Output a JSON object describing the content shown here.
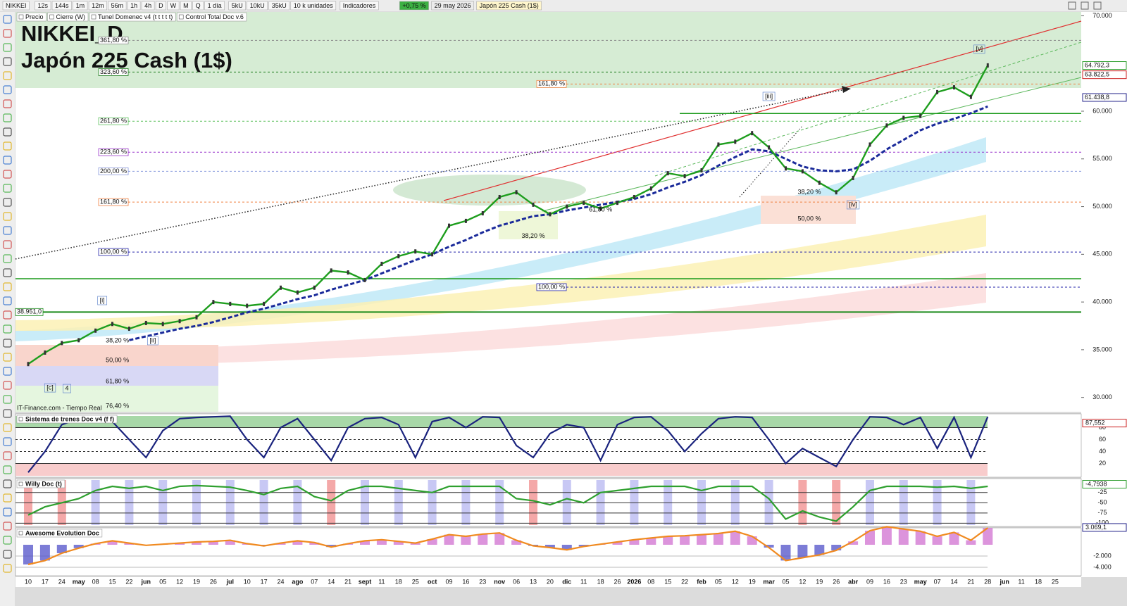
{
  "toolbar": {
    "symbol": "NIKKEI",
    "timeframes": [
      "12s",
      "144s",
      "1m",
      "12m",
      "56m",
      "1h",
      "4h",
      "D",
      "W",
      "M",
      "Q"
    ],
    "period": "1 día",
    "units": [
      "5kU",
      "10kU",
      "35kU"
    ],
    "units_select": "10 k unidades",
    "indicators": "Indicadores",
    "change": "+0,75 %",
    "date": "29 may 2026",
    "instrument": "Japón 225 Cash (1$)"
  },
  "legend": [
    "Precio",
    "Cierre (W)",
    "Tunel Domenec v4 (t t t t t)",
    "Control Total Doc v.6"
  ],
  "main": {
    "title": "NIKKEI_D",
    "subtitle": "Japón 225 Cash (1$)",
    "source": "IT-Finance.com - Tiempo Real",
    "ylim": [
      28500,
      70400
    ],
    "yticks": [
      {
        "value": 30000,
        "label": "30.000"
      },
      {
        "value": 35000,
        "label": "35.000"
      },
      {
        "value": 40000,
        "label": "40.000"
      },
      {
        "value": 45000,
        "label": "45.000"
      },
      {
        "value": 50000,
        "label": "50.000"
      },
      {
        "value": 55000,
        "label": "55.000"
      },
      {
        "value": 60000,
        "label": "60.000"
      },
      {
        "value": 70000,
        "label": "70.000"
      }
    ],
    "price": [
      33500,
      34700,
      35700,
      36000,
      37000,
      37700,
      37200,
      37800,
      37700,
      38000,
      38400,
      40000,
      39800,
      39600,
      39800,
      41500,
      41000,
      41500,
      43300,
      43100,
      42300,
      44000,
      44800,
      45300,
      45000,
      48000,
      48500,
      49300,
      51000,
      51500,
      50200,
      49200,
      50000,
      50400,
      49800,
      50400,
      51000,
      51900,
      53500,
      53200,
      53800,
      56500,
      56800,
      57700,
      56200,
      54000,
      53700,
      52500,
      51500,
      53000,
      56500,
      58500,
      59300,
      59500,
      62000,
      62500,
      61500,
      64800
    ],
    "trend": [
      null,
      null,
      null,
      null,
      null,
      null,
      36000,
      36400,
      36800,
      37200,
      37500,
      37900,
      38400,
      38900,
      39300,
      39800,
      40300,
      40700,
      41300,
      41800,
      42300,
      43000,
      43700,
      44400,
      45000,
      45800,
      46500,
      47300,
      48000,
      48500,
      49000,
      49200,
      49600,
      49900,
      50200,
      50500,
      50800,
      51300,
      52000,
      52600,
      53300,
      54300,
      55200,
      56000,
      55800,
      55000,
      54200,
      53800,
      53700,
      53900,
      54800,
      56000,
      57000,
      58000,
      58700,
      59200,
      59800,
      60500
    ],
    "levels": [
      {
        "label": "361,80 %",
        "value": 67420,
        "color": "#888888"
      },
      {
        "label": "323,60 %",
        "value": 64100,
        "color": "#1a7a1a"
      },
      {
        "label": "161,80 %",
        "value": 62850,
        "color": "#f08040"
      },
      {
        "label": "261,80 %",
        "value": 58950,
        "color": "#5cc05c"
      },
      {
        "label": "223,60 %",
        "value": 55700,
        "color": "#9933cc"
      },
      {
        "label": "200,00 %",
        "value": 53700,
        "color": "#8899dd"
      },
      {
        "label": "161,80 %",
        "value": 50470,
        "color": "#f08040"
      },
      {
        "label": "100,00 %",
        "value": 45240,
        "color": "#2222aa"
      },
      {
        "label": "100,00 %",
        "value": 41560,
        "color": "#2222aa"
      },
      {
        "label": "38.951,0",
        "value": 38951,
        "color": "#1a8a1a"
      }
    ],
    "lines": [
      42440,
      59760
    ],
    "price_tags": [
      {
        "label": "64.792,3",
        "value": 64792.3,
        "color": "#2e9e2e"
      },
      {
        "label": "63.822,5",
        "value": 63822.5,
        "color": "#cc2222"
      },
      {
        "label": "61.438,8",
        "value": 61438.8,
        "color": "#22228a"
      }
    ],
    "fib_labels": [
      {
        "label": "38,20 %",
        "x": 30,
        "value": 46900,
        "color": "#3a9a3a"
      },
      {
        "label": "61,80 %",
        "x": 34,
        "value": 49670,
        "color": "#2222aa"
      },
      {
        "label": "38,20 %",
        "x": 46.4,
        "value": 51500,
        "color": "#3a9a3a"
      },
      {
        "label": "50,00 %",
        "x": 46.4,
        "value": 48710,
        "color": "#f08040"
      },
      {
        "label": "38,20 %",
        "x": 5.3,
        "value": 35950,
        "color": "#3a9a3a"
      },
      {
        "label": "50,00 %",
        "x": 5.3,
        "value": 33884,
        "color": "#f08040"
      },
      {
        "label": "61,80 %",
        "x": 5.3,
        "value": 31670,
        "color": "#2222aa"
      },
      {
        "label": "76,40 %",
        "x": 5.3,
        "value": 29090,
        "color": "#3a9a3a"
      }
    ],
    "waves": [
      {
        "label": "[i]",
        "x": 4.4,
        "value": 40155
      },
      {
        "label": "[ii]",
        "x": 7.4,
        "value": 35950
      },
      {
        "label": "[iii]",
        "x": 44,
        "value": 61550
      },
      {
        "label": "[iv]",
        "x": 49,
        "value": 50190
      },
      {
        "label": "[v]",
        "x": 56.5,
        "value": 66500
      },
      {
        "label": "[c]",
        "x": 1.3,
        "value": 31000
      },
      {
        "label": "4",
        "x": 2.3,
        "value": 30930
      }
    ],
    "x_labels": [
      "10",
      "17",
      "24",
      "may",
      "08",
      "15",
      "22",
      "jun",
      "05",
      "12",
      "19",
      "26",
      "jul",
      "10",
      "17",
      "24",
      "ago",
      "07",
      "14",
      "21",
      "sept",
      "11",
      "18",
      "25",
      "oct",
      "09",
      "16",
      "23",
      "nov",
      "06",
      "13",
      "20",
      "dic",
      "11",
      "18",
      "26",
      "2026",
      "08",
      "15",
      "22",
      "feb",
      "05",
      "12",
      "19",
      "mar",
      "05",
      "12",
      "19",
      "26",
      "abr",
      "09",
      "16",
      "23",
      "may",
      "07",
      "14",
      "21",
      "28",
      "jun",
      "11",
      "18",
      "25"
    ]
  },
  "panels": [
    {
      "title": "Sistema de trenes Doc v4 (f f)",
      "ylim": [
        -3,
        103
      ],
      "yticks": [
        80,
        60,
        40,
        20
      ],
      "tag": {
        "label": "87,552",
        "value": 87.552,
        "color": "#cc2222"
      },
      "values": [
        5,
        40,
        85,
        95,
        97,
        90,
        60,
        30,
        75,
        95,
        97,
        98,
        99,
        60,
        30,
        80,
        95,
        60,
        25,
        80,
        95,
        97,
        85,
        30,
        90,
        97,
        80,
        98,
        97,
        50,
        30,
        70,
        85,
        80,
        25,
        85,
        97,
        98,
        75,
        40,
        70,
        95,
        98,
        97,
        60,
        20,
        45,
        30,
        15,
        60,
        98,
        97,
        85,
        97,
        45,
        97,
        30,
        98
      ]
    },
    {
      "title": "Willy Doc (t)",
      "ylim": [
        -108,
        9
      ],
      "yticks": [
        -25,
        -50,
        -75,
        -100
      ],
      "tag": {
        "label": "-4,7938",
        "value": -4.7938,
        "color": "#2e9e2e"
      },
      "values": [
        -80,
        -60,
        -50,
        -40,
        -20,
        -10,
        -15,
        -10,
        -20,
        -10,
        -8,
        -10,
        -12,
        -20,
        -30,
        -15,
        -10,
        -35,
        -45,
        -20,
        -10,
        -10,
        -15,
        -20,
        -25,
        -10,
        -10,
        -10,
        -10,
        -40,
        -45,
        -55,
        -40,
        -50,
        -25,
        -20,
        -15,
        -10,
        -10,
        -10,
        -20,
        -10,
        -10,
        -10,
        -40,
        -90,
        -70,
        -85,
        -95,
        -60,
        -20,
        -10,
        -10,
        -10,
        -12,
        -10,
        -15,
        -10
      ]
    },
    {
      "title": "Awesome Evolution Doc",
      "ylim": [
        -5500,
        3000
      ],
      "yticks": [
        {
          "value": -2000,
          "label": "-2.000"
        },
        {
          "value": -4000,
          "label": "-4.000"
        }
      ],
      "tag": {
        "label": "3.069,1",
        "value": 3069.1,
        "color": "#22228a"
      },
      "values": [
        -3500,
        -2800,
        -1500,
        -600,
        200,
        700,
        300,
        -100,
        100,
        300,
        500,
        600,
        800,
        200,
        -200,
        300,
        700,
        400,
        -400,
        200,
        700,
        900,
        600,
        300,
        1000,
        1800,
        1500,
        1900,
        2100,
        800,
        -200,
        -500,
        -900,
        -300,
        100,
        500,
        900,
        1200,
        1500,
        1600,
        1800,
        2000,
        2400,
        1500,
        -500,
        -2800,
        -2300,
        -1800,
        -1000,
        600,
        2500,
        3200,
        2800,
        2400,
        1500,
        2200,
        800,
        3000
      ]
    }
  ]
}
